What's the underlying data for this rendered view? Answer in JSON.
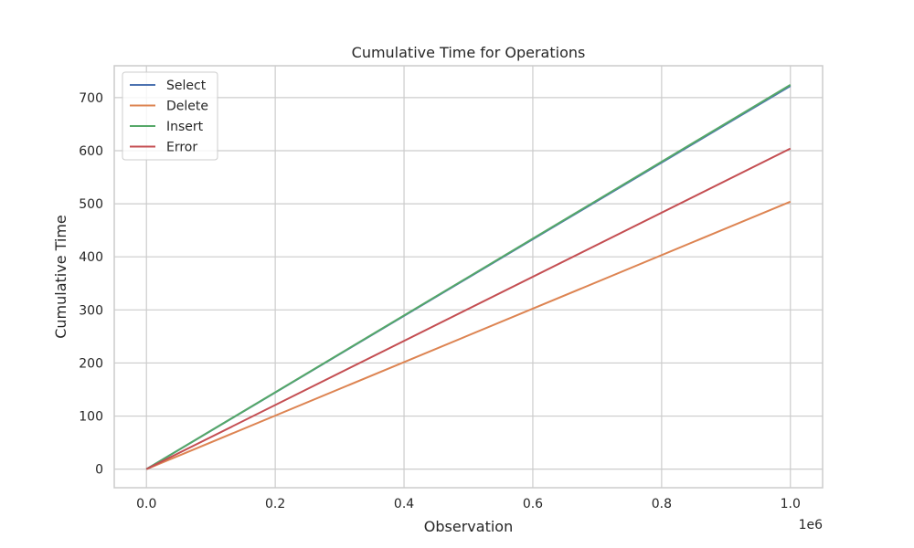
{
  "chart_data": {
    "type": "line",
    "title": "Cumulative Time for Operations",
    "xlabel": "Observation",
    "ylabel": "Cumulative Time",
    "x_offset_label": "1e6",
    "xlim": [
      -0.05,
      1.05
    ],
    "ylim": [
      -35,
      760
    ],
    "xticks": [
      0.0,
      0.2,
      0.4,
      0.6,
      0.8,
      1.0
    ],
    "xtick_labels": [
      "0.0",
      "0.2",
      "0.4",
      "0.6",
      "0.8",
      "1.0"
    ],
    "yticks": [
      0,
      100,
      200,
      300,
      400,
      500,
      600,
      700
    ],
    "ytick_labels": [
      "0",
      "100",
      "200",
      "300",
      "400",
      "500",
      "600",
      "700"
    ],
    "grid": true,
    "legend_position": "top-left",
    "x": [
      0.0,
      1.0
    ],
    "series": [
      {
        "name": "Select",
        "color": "#4c72b0",
        "values": [
          0,
          722
        ]
      },
      {
        "name": "Delete",
        "color": "#dd8452",
        "values": [
          0,
          504
        ]
      },
      {
        "name": "Insert",
        "color": "#55a868",
        "values": [
          0,
          724
        ]
      },
      {
        "name": "Error",
        "color": "#c44e52",
        "values": [
          0,
          604
        ]
      }
    ]
  }
}
